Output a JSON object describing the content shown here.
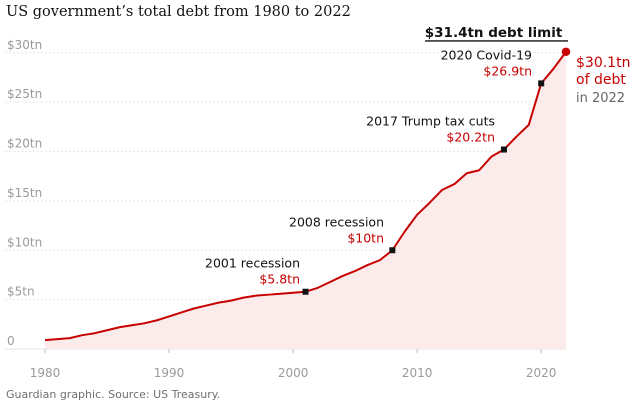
{
  "chart_data": {
    "type": "area",
    "title": "US government’s total debt from 1980 to 2022",
    "source": "Guardian graphic. Source: US Treasury.",
    "xlabel": "",
    "ylabel": "",
    "xlim": [
      1980,
      2022
    ],
    "ylim": [
      0,
      32
    ],
    "x_ticks": [
      1980,
      1990,
      2000,
      2010,
      2020
    ],
    "y_ticks": [
      {
        "value": 0,
        "label": "0"
      },
      {
        "value": 5,
        "label": "$5tn"
      },
      {
        "value": 10,
        "label": "$10tn"
      },
      {
        "value": 15,
        "label": "$15tn"
      },
      {
        "value": 20,
        "label": "$20tn"
      },
      {
        "value": 25,
        "label": "$25tn"
      },
      {
        "value": 30,
        "label": "$30tn"
      }
    ],
    "grid": true,
    "series": [
      {
        "name": "Total debt",
        "color": "#c70000",
        "fill": "#fbeceb",
        "x": [
          1980,
          1981,
          1982,
          1983,
          1984,
          1985,
          1986,
          1987,
          1988,
          1989,
          1990,
          1991,
          1992,
          1993,
          1994,
          1995,
          1996,
          1997,
          1998,
          1999,
          2000,
          2001,
          2002,
          2003,
          2004,
          2005,
          2006,
          2007,
          2008,
          2009,
          2010,
          2011,
          2012,
          2013,
          2014,
          2015,
          2016,
          2017,
          2018,
          2019,
          2020,
          2021,
          2022
        ],
        "y": [
          0.9,
          1.0,
          1.1,
          1.4,
          1.6,
          1.9,
          2.2,
          2.4,
          2.6,
          2.9,
          3.3,
          3.7,
          4.1,
          4.4,
          4.7,
          4.9,
          5.2,
          5.4,
          5.5,
          5.6,
          5.7,
          5.8,
          6.2,
          6.8,
          7.4,
          7.9,
          8.5,
          9.0,
          10.0,
          11.9,
          13.6,
          14.8,
          16.1,
          16.7,
          17.8,
          18.1,
          19.5,
          20.2,
          21.5,
          22.7,
          26.9,
          28.4,
          30.1
        ]
      }
    ],
    "limit_line": {
      "value": 31.4,
      "label": "$31.4tn debt limit",
      "x_from": 2010.8,
      "x_to": 2022
    },
    "annotations": [
      {
        "x": 2001,
        "y": 5.8,
        "label": "2001 recession",
        "value_label": "$5.8tn"
      },
      {
        "x": 2008,
        "y": 10.0,
        "label": "2008 recession",
        "value_label": "$10tn"
      },
      {
        "x": 2017,
        "y": 20.2,
        "label": "2017 Trump tax cuts",
        "value_label": "$20.2tn"
      },
      {
        "x": 2020,
        "y": 26.9,
        "label": "2020 Covid-19",
        "value_label": "$26.9tn"
      }
    ],
    "endpoint": {
      "x": 2022,
      "y": 30.1,
      "line1": "$30.1tn",
      "line2": "of debt",
      "line3": "in 2022"
    }
  }
}
